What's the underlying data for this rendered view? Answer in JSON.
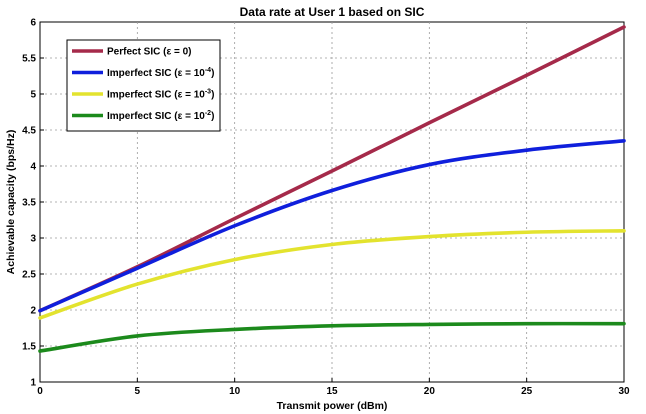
{
  "chart_data": {
    "type": "line",
    "title": "Data rate at User 1 based on SIC",
    "xlabel": "Transmit power (dBm)",
    "ylabel": "Achievable capacity (bps/Hz)",
    "xlim": [
      0,
      30
    ],
    "ylim": [
      1,
      6
    ],
    "xticks": [
      0,
      5,
      10,
      15,
      20,
      25,
      30
    ],
    "yticks": [
      1,
      1.5,
      2,
      2.5,
      3,
      3.5,
      4,
      4.5,
      5,
      5.5,
      6
    ],
    "grid": true,
    "legend_position": "top-left",
    "x": [
      0,
      5,
      10,
      15,
      20,
      25,
      30
    ],
    "series": [
      {
        "name": "Perfect SIC (ε = 0)",
        "name_base": "Perfect SIC (ε = 0)",
        "name_sup": "",
        "name_tail": "",
        "color": "#a52a4a",
        "values": [
          1.99,
          2.6,
          3.27,
          3.93,
          4.6,
          5.26,
          5.93
        ]
      },
      {
        "name": "Imperfect SIC (ε = 10⁻⁴)",
        "name_base": "Imperfect SIC (ε = 10",
        "name_sup": "-4",
        "name_tail": ")",
        "color": "#0f1fdc",
        "values": [
          1.99,
          2.58,
          3.17,
          3.66,
          4.02,
          4.22,
          4.35
        ]
      },
      {
        "name": "Imperfect SIC (ε = 10⁻³)",
        "name_base": "Imperfect SIC (ε = 10",
        "name_sup": "-3",
        "name_tail": ")",
        "color": "#e3e32e",
        "values": [
          1.89,
          2.36,
          2.7,
          2.91,
          3.02,
          3.08,
          3.1
        ]
      },
      {
        "name": "Imperfect SIC (ε = 10⁻²)",
        "name_base": "Imperfect SIC (ε = 10",
        "name_sup": "-2",
        "name_tail": ")",
        "color": "#1c8a1c",
        "values": [
          1.43,
          1.64,
          1.73,
          1.78,
          1.8,
          1.81,
          1.81
        ]
      }
    ]
  }
}
